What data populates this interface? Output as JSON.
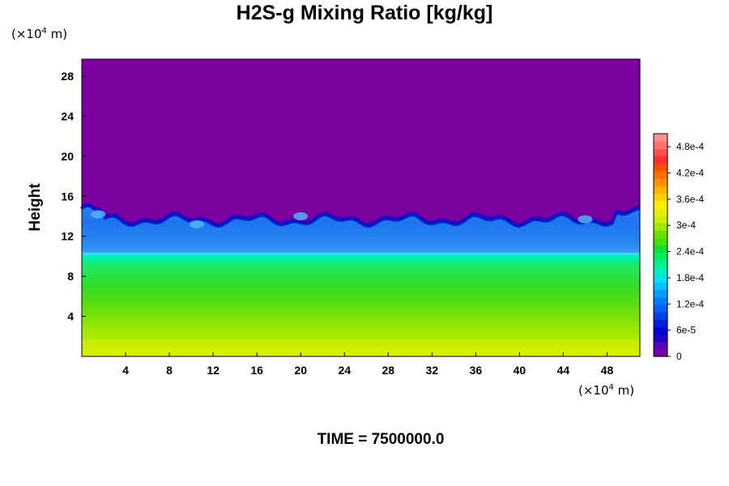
{
  "chart_data": {
    "type": "heatmap",
    "title": "H2S-g Mixing Ratio [kg/kg]",
    "ylabel": "Height",
    "x_unit": "(×10⁴ m)",
    "y_unit": "(×10⁴ m)",
    "time_label": "TIME = 7500000.0",
    "xlim": [
      0,
      51
    ],
    "ylim": [
      0,
      29.7
    ],
    "x_ticks": [
      4,
      8,
      12,
      16,
      20,
      24,
      28,
      32,
      36,
      40,
      44,
      48
    ],
    "y_ticks": [
      4,
      8,
      12,
      16,
      20,
      24,
      28
    ],
    "colorbar": {
      "range": [
        0,
        0.00051
      ],
      "tick_values": [
        0,
        6e-05,
        0.00012,
        0.00018,
        0.00024,
        0.0003,
        0.00036,
        0.00042,
        0.00048
      ],
      "tick_labels": [
        "0",
        "6e-5",
        "1.2e-4",
        "1.8e-4",
        "2.4e-4",
        "3e-4",
        "3.6e-4",
        "4.2e-4",
        "4.8e-4"
      ],
      "colors": [
        "#7a00a0",
        "#5500bb",
        "#2200cc",
        "#0000d8",
        "#0020e0",
        "#0040e8",
        "#0060f0",
        "#0080f8",
        "#00a0ff",
        "#00c0ff",
        "#00e0ee",
        "#00f0c0",
        "#00f090",
        "#00ee60",
        "#10e030",
        "#40e000",
        "#70e000",
        "#a0e800",
        "#c8f000",
        "#e8f000",
        "#ffee00",
        "#ffd000",
        "#ffb000",
        "#ff9000",
        "#ff7000",
        "#ff5000",
        "#ff3030",
        "#ff5050",
        "#ff7070",
        "#ff9090"
      ]
    },
    "vertical_profile": [
      {
        "height": 0,
        "value": 0.000385
      },
      {
        "height": 2,
        "value": 0.00037
      },
      {
        "height": 4,
        "value": 0.00032
      },
      {
        "height": 6,
        "value": 0.00029
      },
      {
        "height": 8,
        "value": 0.000265
      },
      {
        "height": 10,
        "value": 0.00022
      },
      {
        "height": 10.3,
        "value": 0.00013
      },
      {
        "height": 12,
        "value": 0.000115
      },
      {
        "height": 13.5,
        "value": 6e-05
      },
      {
        "height": 14.5,
        "value": 0
      }
    ]
  }
}
